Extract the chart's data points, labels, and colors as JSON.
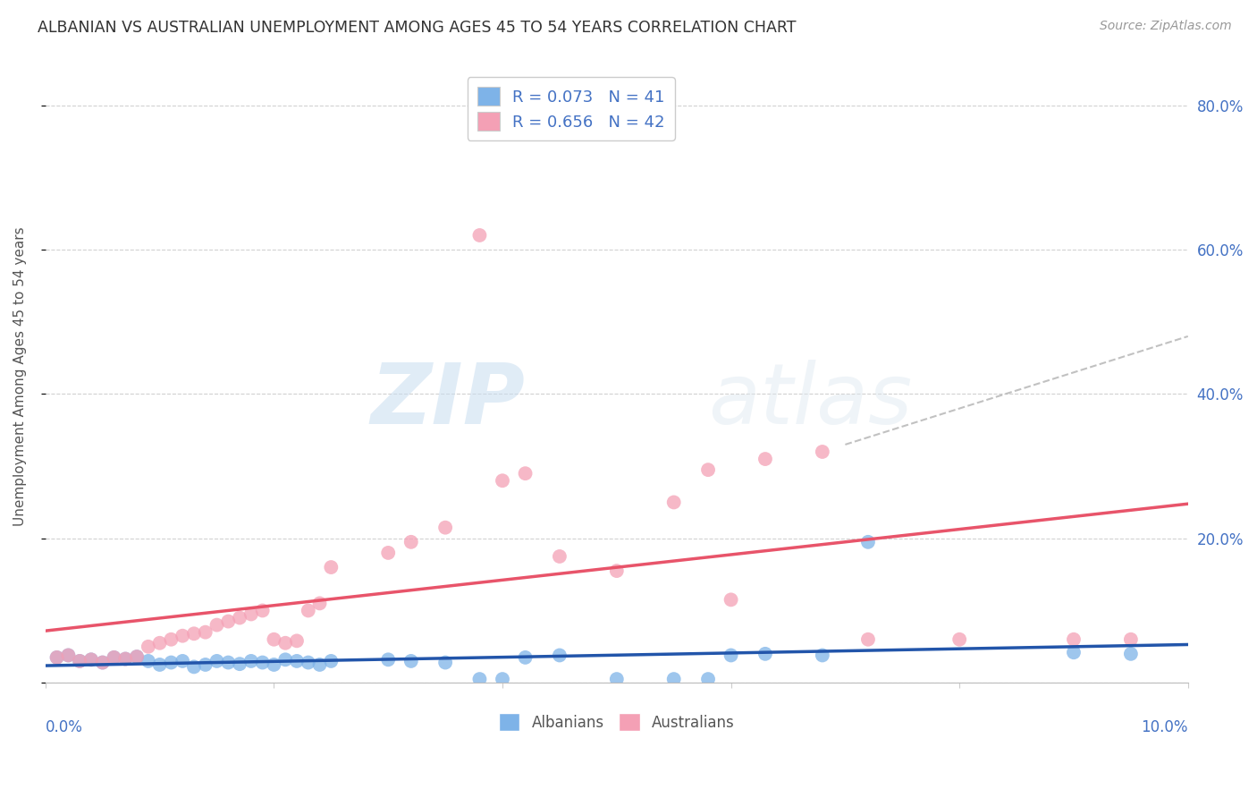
{
  "title": "ALBANIAN VS AUSTRALIAN UNEMPLOYMENT AMONG AGES 45 TO 54 YEARS CORRELATION CHART",
  "source": "Source: ZipAtlas.com",
  "ylabel": "Unemployment Among Ages 45 to 54 years",
  "xlim": [
    0.0,
    0.1
  ],
  "ylim": [
    0.0,
    0.85
  ],
  "albanian_color": "#7eb3e8",
  "australian_color": "#f4a0b5",
  "albanian_line_color": "#2255aa",
  "australian_line_color": "#e8546a",
  "dashed_line_color": "#bbbbbb",
  "legend_R_albanian": "R = 0.073",
  "legend_N_albanian": "N = 41",
  "legend_R_australian": "R = 0.656",
  "legend_N_australian": "N = 42",
  "albanian_R": 0.073,
  "albanian_N": 41,
  "australian_R": 0.656,
  "australian_N": 42,
  "watermark_zip": "ZIP",
  "watermark_atlas": "atlas",
  "background_color": "#ffffff",
  "grid_color": "#cccccc",
  "right_tick_color": "#4472c4",
  "title_color": "#333333",
  "albanian_x": [
    0.001,
    0.002,
    0.003,
    0.004,
    0.005,
    0.006,
    0.007,
    0.008,
    0.009,
    0.01,
    0.011,
    0.012,
    0.013,
    0.014,
    0.015,
    0.016,
    0.017,
    0.018,
    0.019,
    0.02,
    0.021,
    0.022,
    0.023,
    0.024,
    0.025,
    0.03,
    0.032,
    0.035,
    0.038,
    0.04,
    0.042,
    0.045,
    0.05,
    0.055,
    0.058,
    0.06,
    0.063,
    0.068,
    0.072,
    0.09,
    0.095
  ],
  "albanian_y": [
    0.035,
    0.038,
    0.03,
    0.032,
    0.028,
    0.035,
    0.033,
    0.036,
    0.03,
    0.025,
    0.028,
    0.03,
    0.022,
    0.025,
    0.03,
    0.028,
    0.026,
    0.03,
    0.028,
    0.025,
    0.032,
    0.03,
    0.028,
    0.025,
    0.03,
    0.032,
    0.03,
    0.028,
    0.005,
    0.005,
    0.035,
    0.038,
    0.005,
    0.005,
    0.005,
    0.038,
    0.04,
    0.038,
    0.195,
    0.042,
    0.04
  ],
  "australian_x": [
    0.001,
    0.002,
    0.003,
    0.004,
    0.005,
    0.006,
    0.007,
    0.008,
    0.009,
    0.01,
    0.011,
    0.012,
    0.013,
    0.014,
    0.015,
    0.016,
    0.017,
    0.018,
    0.019,
    0.02,
    0.021,
    0.022,
    0.023,
    0.024,
    0.025,
    0.03,
    0.032,
    0.035,
    0.038,
    0.04,
    0.042,
    0.045,
    0.05,
    0.055,
    0.058,
    0.06,
    0.063,
    0.068,
    0.072,
    0.08,
    0.09,
    0.095
  ],
  "australian_y": [
    0.035,
    0.038,
    0.03,
    0.032,
    0.028,
    0.035,
    0.033,
    0.036,
    0.05,
    0.055,
    0.06,
    0.065,
    0.068,
    0.07,
    0.08,
    0.085,
    0.09,
    0.095,
    0.1,
    0.06,
    0.055,
    0.058,
    0.1,
    0.11,
    0.16,
    0.18,
    0.195,
    0.215,
    0.62,
    0.28,
    0.29,
    0.175,
    0.155,
    0.25,
    0.295,
    0.115,
    0.31,
    0.32,
    0.06,
    0.06,
    0.06,
    0.06
  ]
}
